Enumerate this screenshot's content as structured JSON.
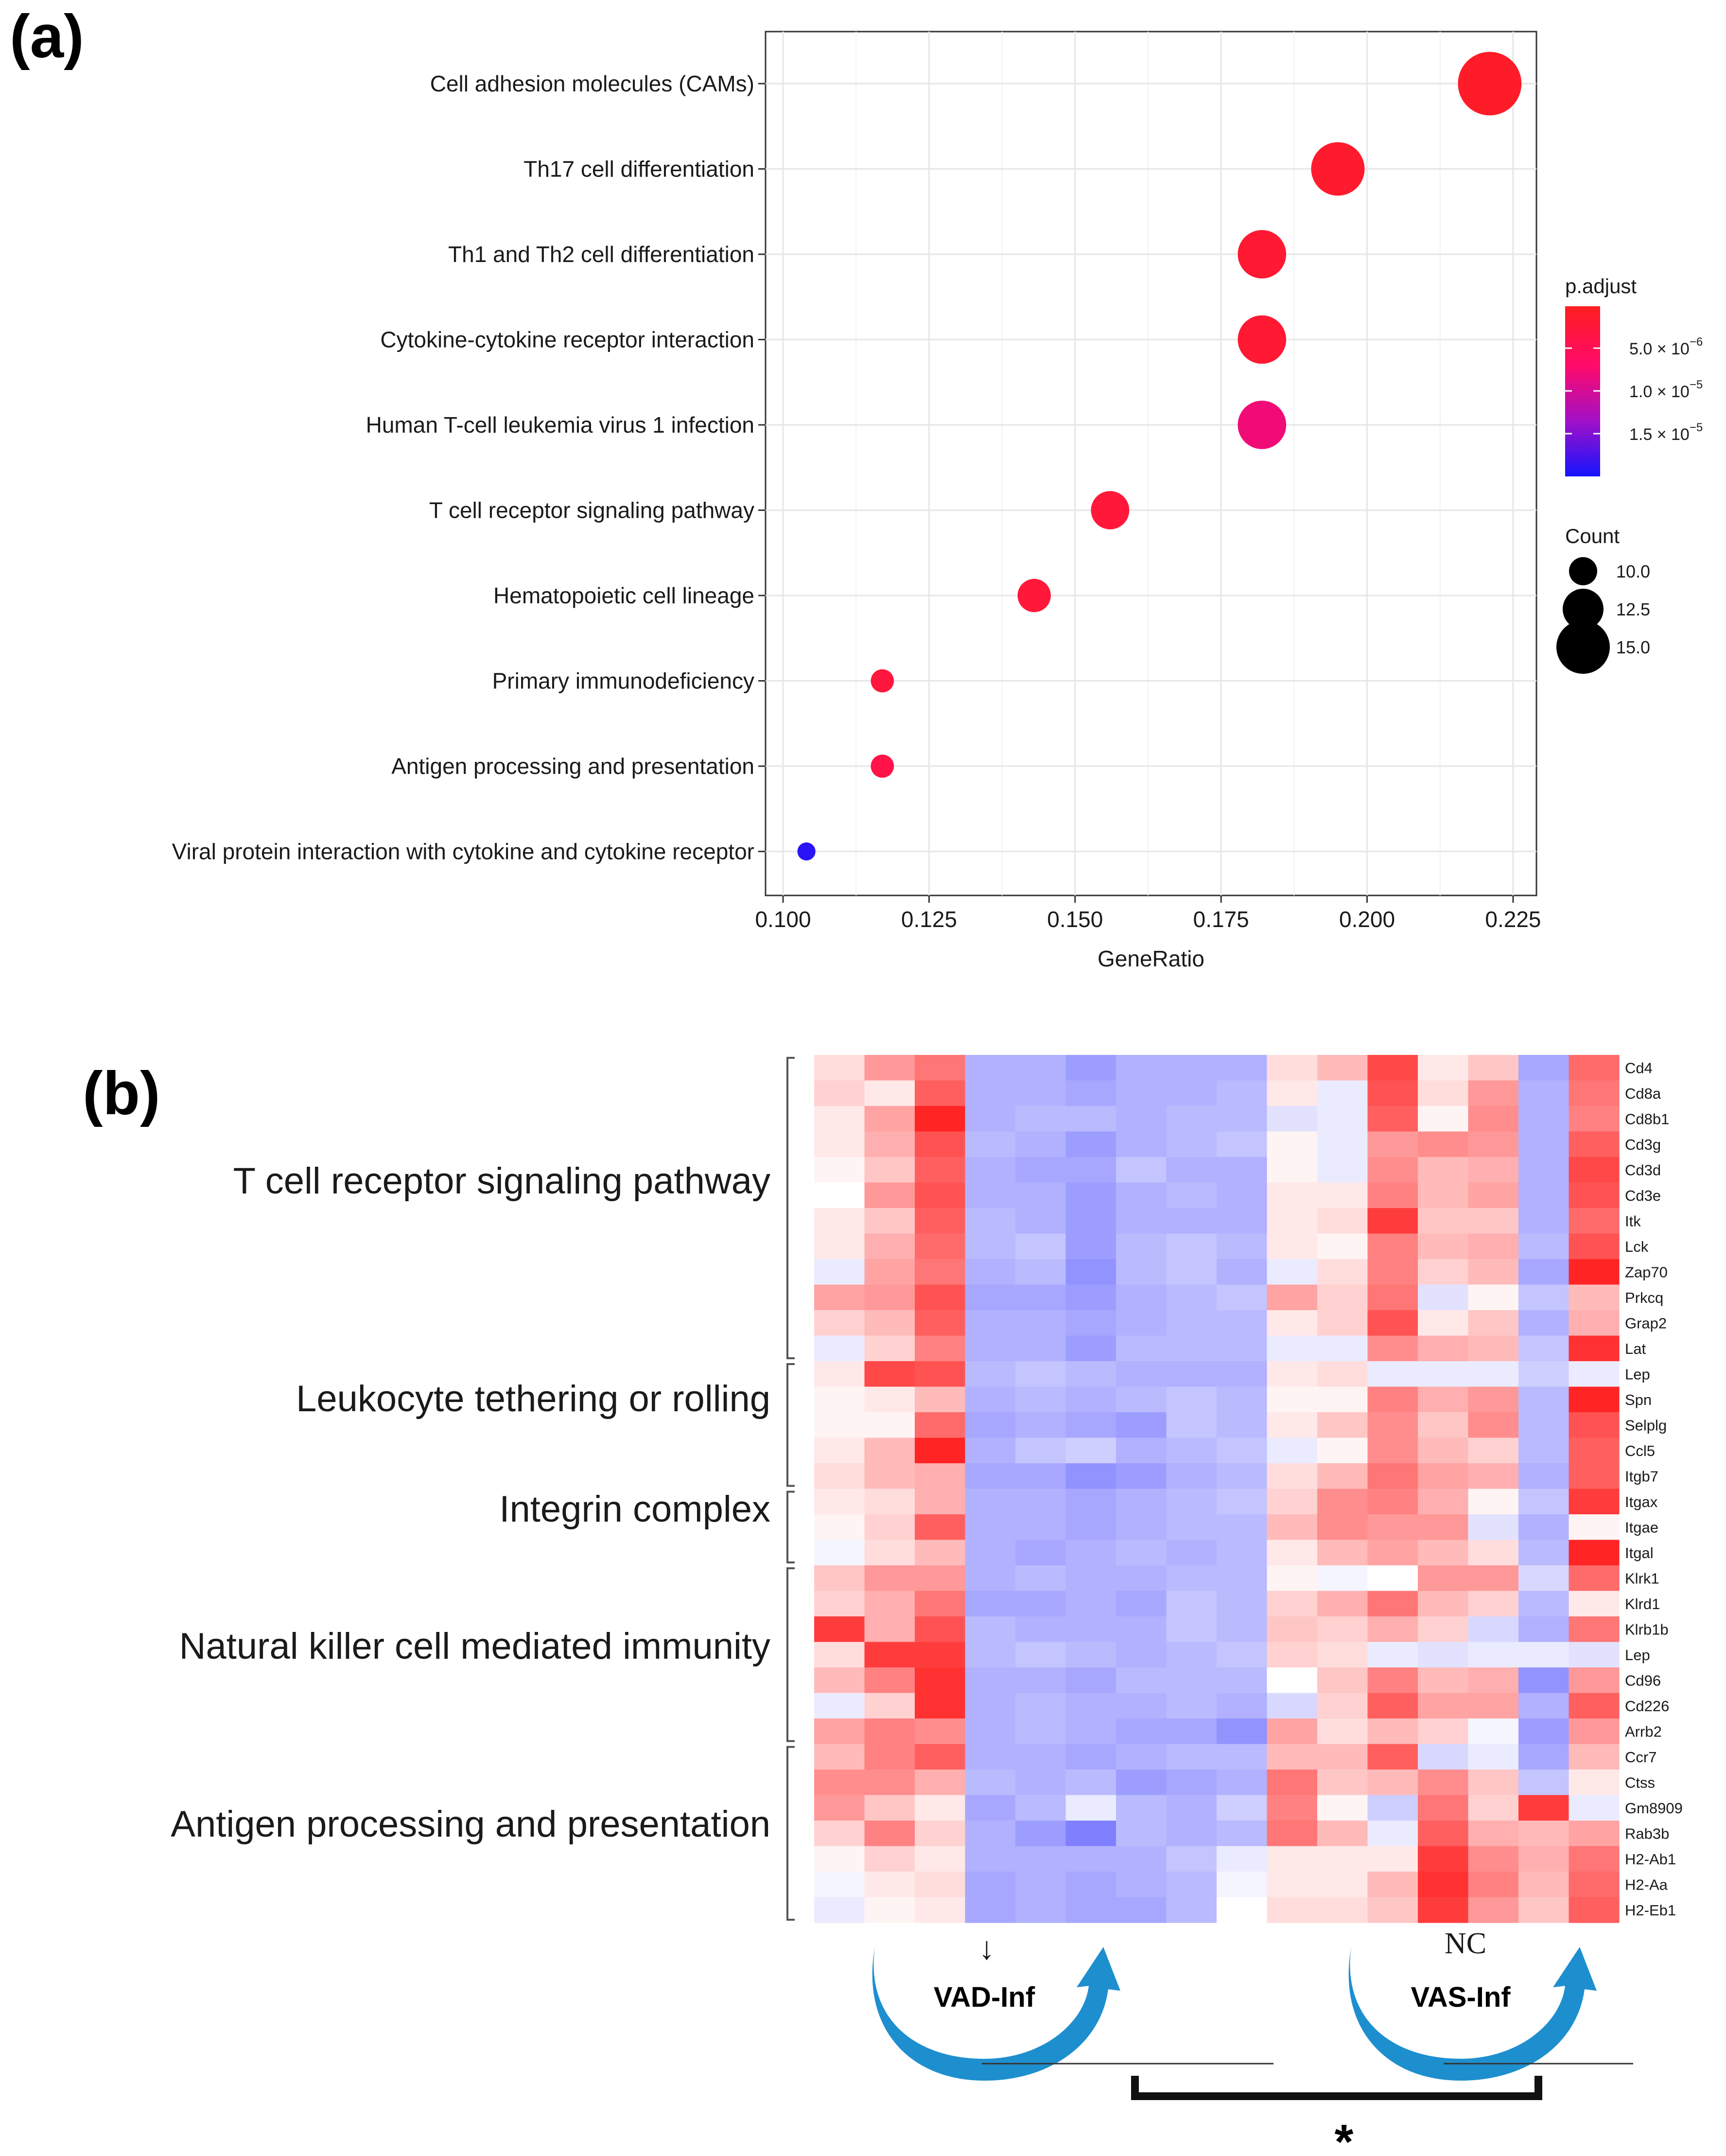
{
  "panel_a": {
    "label": "(a)",
    "legend": {
      "color_title": "p.adjust",
      "color_ticks": [
        "5.0 × 10",
        "1.0 × 10",
        "1.5 × 10"
      ],
      "color_tick_exp": [
        "−6",
        "−5",
        "−5"
      ],
      "color_tick_values": [
        5e-06,
        1e-05,
        1.5e-05
      ],
      "color_range": [
        1e-07,
        2e-05
      ],
      "size_title": "Count",
      "size_ticks": [
        "10.0",
        "12.5",
        "15.0"
      ],
      "size_values": [
        10,
        12.5,
        15
      ]
    }
  },
  "panel_b": {
    "label": "(b)",
    "group_labels": [
      "T cell receptor signaling pathway",
      "Leukocyte tethering or rolling",
      "Integrin complex",
      "Natural killer cell mediated immunity",
      "Antigen processing and presentation"
    ],
    "annotations": {
      "down_arrow": "↓",
      "nc": "NC",
      "vad": "VAD-Inf",
      "vas": "VAS-Inf",
      "significance": "*"
    }
  },
  "chart_data": [
    {
      "type": "scatter",
      "title": "",
      "xlabel": "GeneRatio",
      "ylabel": "",
      "xlim": [
        0.097,
        0.229
      ],
      "xticks": [
        0.1,
        0.125,
        0.15,
        0.175,
        0.2,
        0.225
      ],
      "xtick_labels": [
        "0.100",
        "0.125",
        "0.150",
        "0.175",
        "0.200",
        "0.225"
      ],
      "grid": true,
      "legend": "right",
      "categories": [
        "Cell adhesion molecules (CAMs)",
        "Th17 cell differentiation",
        "Th1 and Th2 cell differentiation",
        "Cytokine-cytokine receptor interaction",
        "Human T-cell leukemia virus 1 infection",
        "T cell receptor signaling pathway",
        "Hematopoietic cell lineage",
        "Primary immunodeficiency",
        "Antigen processing and presentation",
        "Viral protein interaction with cytokine and cytokine receptor"
      ],
      "gene_ratio": [
        0.221,
        0.195,
        0.182,
        0.182,
        0.182,
        0.156,
        0.143,
        0.117,
        0.117,
        0.104
      ],
      "count": [
        17,
        15,
        14,
        14,
        14,
        12,
        11,
        9,
        9,
        8
      ],
      "p_adjust": [
        1e-06,
        1.5e-06,
        2e-06,
        2e-06,
        8e-06,
        2.5e-06,
        2.5e-06,
        3e-06,
        4e-06,
        1.9e-05
      ]
    },
    {
      "type": "heatmap",
      "title": "",
      "color_scale": [
        "#3b3bff",
        "#ffffff",
        "#ff1a1a"
      ],
      "value_range": [
        -1,
        1
      ],
      "rows": [
        "Cd4",
        "Cd8a",
        "Cd8b1",
        "Cd3g",
        "Cd3d",
        "Cd3e",
        "Itk",
        "Lck",
        "Zap70",
        "Prkcq",
        "Grap2",
        "Lat",
        "Lep",
        "Spn",
        "Selplg",
        "Ccl5",
        "Itgb7",
        "Itgax",
        "Itgae",
        "Itgal",
        "Klrk1",
        "Klrd1",
        "Klrb1b",
        "Lep",
        "Cd96",
        "Cd226",
        "Arrb2",
        "Ccr7",
        "Ctss",
        "Gm8909",
        "Rab3b",
        "H2-Ab1",
        "H2-Aa",
        "H2-Eb1"
      ],
      "column_groups": [
        "NC",
        "VAD-Inf",
        "VAS-Inf"
      ],
      "column_group_sizes": [
        3,
        6,
        7
      ],
      "values": [
        [
          0.15,
          0.45,
          0.6,
          -0.4,
          -0.4,
          -0.5,
          -0.4,
          -0.4,
          -0.4,
          0.15,
          0.3,
          0.8,
          0.1,
          0.25,
          -0.45,
          0.65
        ],
        [
          0.2,
          0.1,
          0.7,
          -0.4,
          -0.4,
          -0.45,
          -0.4,
          -0.4,
          -0.35,
          0.1,
          -0.1,
          0.75,
          0.15,
          0.45,
          -0.4,
          0.6
        ],
        [
          0.1,
          0.4,
          0.95,
          -0.4,
          -0.35,
          -0.35,
          -0.4,
          -0.35,
          -0.35,
          -0.15,
          -0.1,
          0.7,
          0.05,
          0.5,
          -0.4,
          0.55
        ],
        [
          0.1,
          0.35,
          0.75,
          -0.35,
          -0.4,
          -0.5,
          -0.4,
          -0.35,
          -0.3,
          0.05,
          -0.1,
          0.45,
          0.5,
          0.45,
          -0.4,
          0.7
        ],
        [
          0.05,
          0.25,
          0.7,
          -0.4,
          -0.45,
          -0.45,
          -0.3,
          -0.4,
          -0.4,
          0.05,
          -0.1,
          0.5,
          0.3,
          0.35,
          -0.4,
          0.8
        ],
        [
          0.0,
          0.45,
          0.75,
          -0.4,
          -0.4,
          -0.5,
          -0.4,
          -0.35,
          -0.4,
          0.1,
          0.1,
          0.55,
          0.3,
          0.4,
          -0.4,
          0.75
        ],
        [
          0.1,
          0.25,
          0.7,
          -0.35,
          -0.4,
          -0.5,
          -0.4,
          -0.4,
          -0.4,
          0.1,
          0.15,
          0.85,
          0.25,
          0.25,
          -0.4,
          0.65
        ],
        [
          0.1,
          0.35,
          0.65,
          -0.35,
          -0.3,
          -0.5,
          -0.35,
          -0.3,
          -0.35,
          0.1,
          0.05,
          0.55,
          0.3,
          0.35,
          -0.35,
          0.75
        ],
        [
          -0.1,
          0.4,
          0.6,
          -0.4,
          -0.35,
          -0.55,
          -0.35,
          -0.3,
          -0.4,
          -0.1,
          0.15,
          0.55,
          0.2,
          0.3,
          -0.45,
          0.95
        ],
        [
          0.4,
          0.45,
          0.75,
          -0.45,
          -0.45,
          -0.5,
          -0.4,
          -0.35,
          -0.3,
          0.4,
          0.2,
          0.6,
          -0.15,
          0.05,
          -0.3,
          0.3
        ],
        [
          0.2,
          0.3,
          0.7,
          -0.4,
          -0.4,
          -0.45,
          -0.4,
          -0.35,
          -0.35,
          0.1,
          0.2,
          0.75,
          0.1,
          0.25,
          -0.4,
          0.35
        ],
        [
          -0.1,
          0.2,
          0.55,
          -0.4,
          -0.4,
          -0.5,
          -0.35,
          -0.35,
          -0.35,
          -0.1,
          -0.1,
          0.5,
          0.35,
          0.3,
          -0.3,
          0.9
        ],
        [
          0.1,
          0.8,
          0.75,
          -0.35,
          -0.3,
          -0.35,
          -0.4,
          -0.4,
          -0.4,
          0.1,
          0.15,
          -0.1,
          -0.1,
          -0.1,
          -0.25,
          -0.1
        ],
        [
          0.05,
          0.1,
          0.3,
          -0.4,
          -0.35,
          -0.4,
          -0.35,
          -0.3,
          -0.35,
          0.05,
          0.05,
          0.55,
          0.35,
          0.45,
          -0.35,
          0.95
        ],
        [
          0.05,
          0.05,
          0.65,
          -0.45,
          -0.4,
          -0.45,
          -0.5,
          -0.3,
          -0.35,
          0.1,
          0.25,
          0.5,
          0.25,
          0.5,
          -0.35,
          0.75
        ],
        [
          0.1,
          0.3,
          0.95,
          -0.4,
          -0.3,
          -0.25,
          -0.4,
          -0.35,
          -0.3,
          -0.1,
          0.05,
          0.5,
          0.3,
          0.2,
          -0.35,
          0.7
        ],
        [
          0.15,
          0.3,
          0.35,
          -0.45,
          -0.45,
          -0.55,
          -0.5,
          -0.4,
          -0.35,
          0.15,
          0.3,
          0.6,
          0.4,
          0.35,
          -0.4,
          0.7
        ],
        [
          0.1,
          0.15,
          0.35,
          -0.4,
          -0.4,
          -0.45,
          -0.4,
          -0.35,
          -0.3,
          0.2,
          0.5,
          0.55,
          0.35,
          0.05,
          -0.3,
          0.85
        ],
        [
          0.05,
          0.2,
          0.7,
          -0.4,
          -0.4,
          -0.45,
          -0.4,
          -0.35,
          -0.35,
          0.3,
          0.5,
          0.45,
          0.45,
          -0.15,
          -0.4,
          0.05
        ],
        [
          -0.05,
          0.15,
          0.3,
          -0.4,
          -0.45,
          -0.4,
          -0.35,
          -0.4,
          -0.35,
          0.1,
          0.3,
          0.4,
          0.3,
          0.15,
          -0.35,
          0.95
        ],
        [
          0.25,
          0.45,
          0.45,
          -0.4,
          -0.35,
          -0.4,
          -0.4,
          -0.35,
          -0.35,
          0.05,
          -0.05,
          0.0,
          0.45,
          0.45,
          -0.2,
          0.65
        ],
        [
          0.2,
          0.35,
          0.6,
          -0.45,
          -0.45,
          -0.4,
          -0.45,
          -0.3,
          -0.35,
          0.2,
          0.35,
          0.6,
          0.3,
          0.2,
          -0.35,
          0.1
        ],
        [
          0.85,
          0.35,
          0.75,
          -0.35,
          -0.4,
          -0.4,
          -0.4,
          -0.3,
          -0.35,
          0.25,
          0.2,
          0.35,
          0.2,
          -0.2,
          -0.4,
          0.6
        ],
        [
          0.15,
          0.85,
          0.85,
          -0.35,
          -0.3,
          -0.35,
          -0.4,
          -0.35,
          -0.3,
          0.2,
          0.15,
          -0.1,
          -0.15,
          -0.1,
          -0.1,
          -0.15
        ],
        [
          0.3,
          0.55,
          0.9,
          -0.4,
          -0.4,
          -0.45,
          -0.35,
          -0.35,
          -0.35,
          0.0,
          0.25,
          0.55,
          0.3,
          0.35,
          -0.55,
          0.45
        ],
        [
          -0.1,
          0.2,
          0.9,
          -0.4,
          -0.35,
          -0.4,
          -0.4,
          -0.35,
          -0.4,
          -0.2,
          0.2,
          0.7,
          0.4,
          0.4,
          -0.4,
          0.7
        ],
        [
          0.4,
          0.55,
          0.5,
          -0.4,
          -0.35,
          -0.4,
          -0.45,
          -0.45,
          -0.55,
          0.4,
          0.15,
          0.3,
          0.2,
          -0.05,
          -0.5,
          0.45
        ],
        [
          0.3,
          0.55,
          0.7,
          -0.4,
          -0.4,
          -0.45,
          -0.4,
          -0.35,
          -0.35,
          0.3,
          0.3,
          0.7,
          -0.2,
          -0.1,
          -0.45,
          0.3
        ],
        [
          0.5,
          0.5,
          0.35,
          -0.35,
          -0.4,
          -0.35,
          -0.5,
          -0.45,
          -0.4,
          0.6,
          0.25,
          0.3,
          0.5,
          0.25,
          -0.3,
          0.1
        ],
        [
          0.45,
          0.25,
          0.1,
          -0.45,
          -0.35,
          -0.1,
          -0.35,
          -0.4,
          -0.25,
          0.55,
          0.05,
          -0.25,
          0.6,
          0.2,
          0.85,
          -0.1
        ],
        [
          0.2,
          0.55,
          0.2,
          -0.4,
          -0.5,
          -0.65,
          -0.35,
          -0.4,
          -0.35,
          0.6,
          0.3,
          -0.1,
          0.7,
          0.35,
          0.3,
          0.4
        ],
        [
          0.05,
          0.2,
          0.1,
          -0.4,
          -0.4,
          -0.4,
          -0.4,
          -0.3,
          -0.1,
          0.1,
          0.1,
          0.1,
          0.85,
          0.5,
          0.35,
          0.6
        ],
        [
          -0.05,
          0.1,
          0.15,
          -0.45,
          -0.4,
          -0.45,
          -0.4,
          -0.35,
          -0.05,
          0.1,
          0.1,
          0.3,
          0.9,
          0.55,
          0.3,
          0.65
        ],
        [
          -0.1,
          0.05,
          0.1,
          -0.45,
          -0.4,
          -0.45,
          -0.45,
          -0.35,
          0.0,
          0.15,
          0.15,
          0.25,
          0.85,
          0.45,
          0.25,
          0.7
        ]
      ]
    }
  ]
}
